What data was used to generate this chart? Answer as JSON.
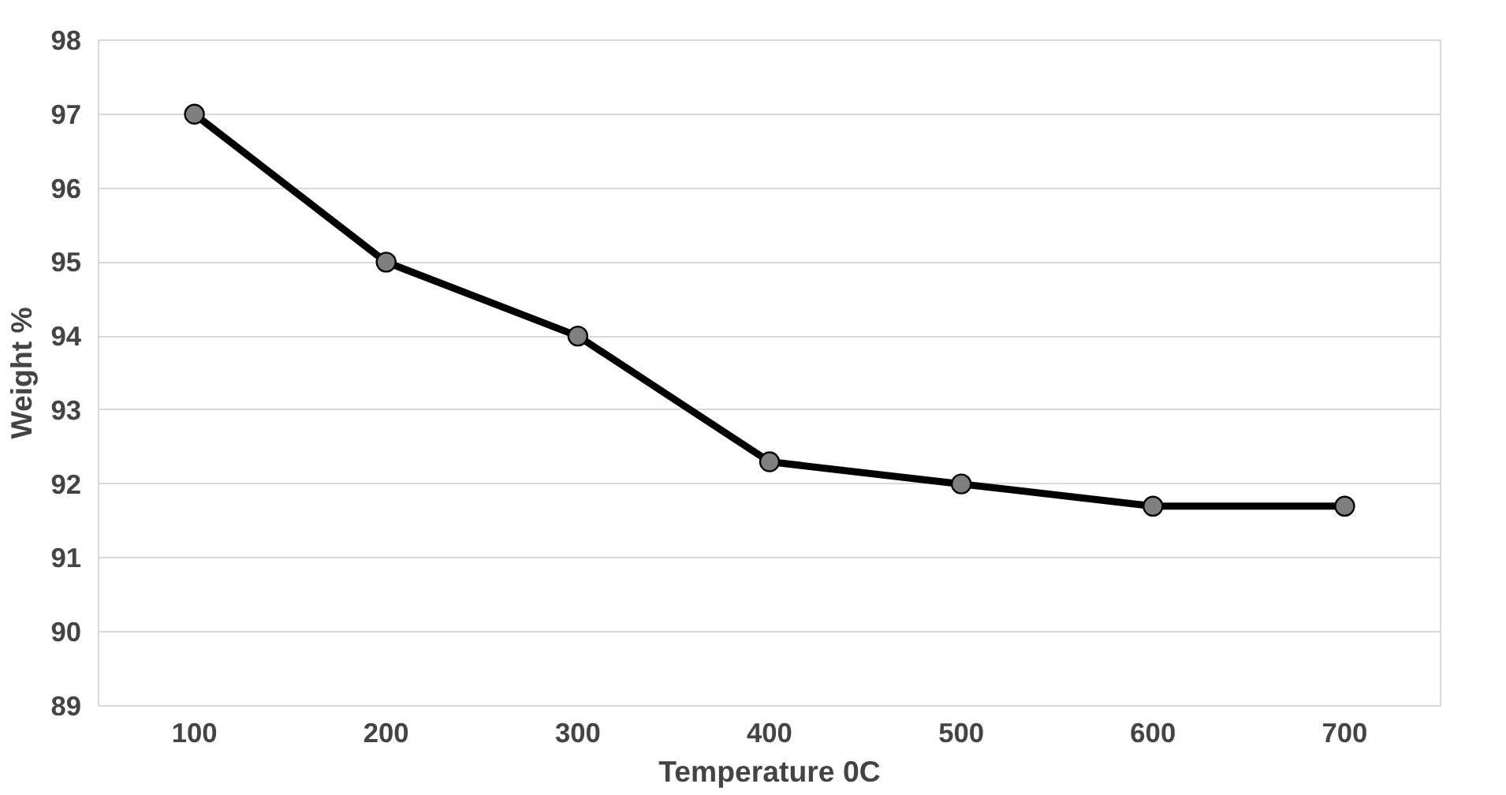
{
  "chart_data": {
    "type": "line",
    "xlabel": "Temperature 0C",
    "ylabel": "Weight %",
    "categories": [
      "100",
      "200",
      "300",
      "400",
      "500",
      "600",
      "700"
    ],
    "series": [
      {
        "color": "#000000",
        "values": [
          97,
          95,
          94,
          92.3,
          92,
          91.7,
          91.7
        ]
      }
    ],
    "ylim": [
      89,
      98
    ],
    "yticks": [
      89,
      90,
      91,
      92,
      93,
      94,
      95,
      96,
      97,
      98
    ],
    "grid": "y",
    "marker": "circle",
    "line_style": "solid"
  }
}
